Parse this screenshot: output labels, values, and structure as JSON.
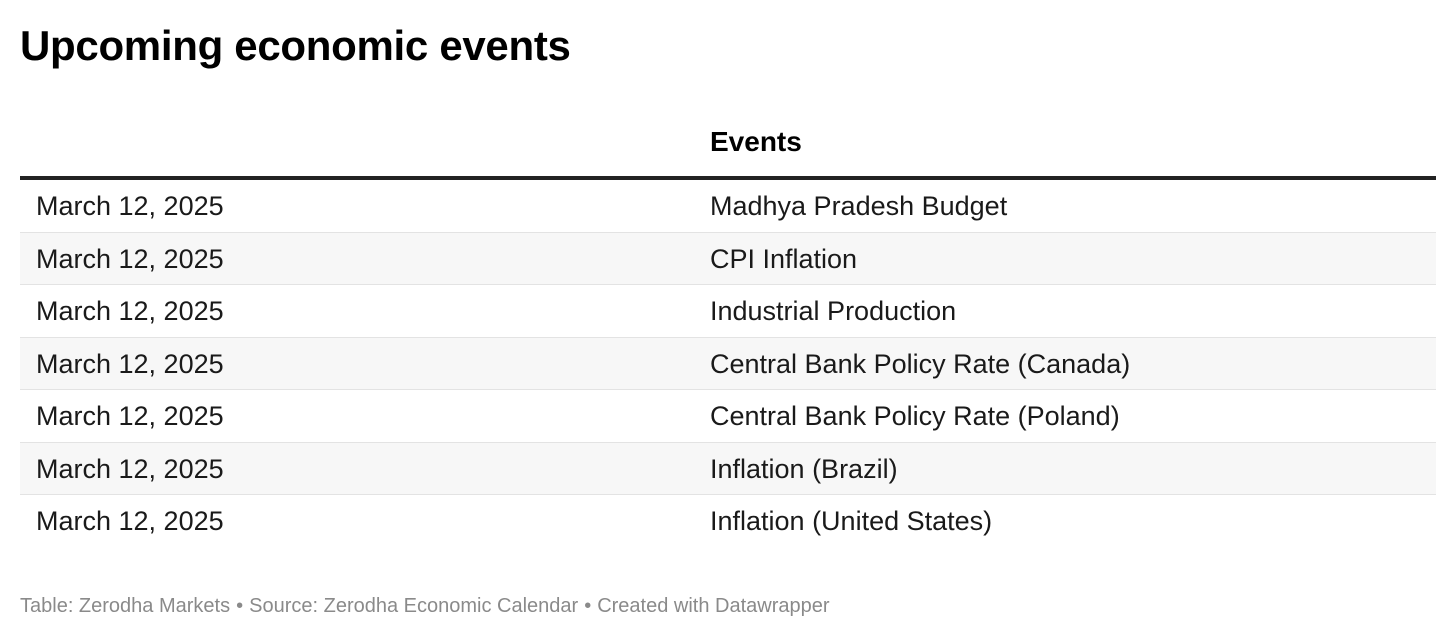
{
  "title": "Upcoming economic events",
  "table": {
    "columns": [
      "",
      "Events"
    ],
    "rows": [
      {
        "date": "March 12, 2025",
        "event": "Madhya Pradesh Budget"
      },
      {
        "date": "March 12, 2025",
        "event": "CPI Inflation"
      },
      {
        "date": "March 12, 2025",
        "event": "Industrial Production"
      },
      {
        "date": "March 12, 2025",
        "event": "Central Bank Policy Rate (Canada)"
      },
      {
        "date": "March 12, 2025",
        "event": "Central Bank Policy Rate (Poland)"
      },
      {
        "date": "March 12, 2025",
        "event": "Inflation (Brazil)"
      },
      {
        "date": "March 12, 2025",
        "event": "Inflation (United States)"
      }
    ]
  },
  "footer": {
    "table_credit": "Table: Zerodha Markets",
    "source": "Source: Zerodha Economic Calendar",
    "created_with": "Created with Datawrapper",
    "separator": "•"
  }
}
